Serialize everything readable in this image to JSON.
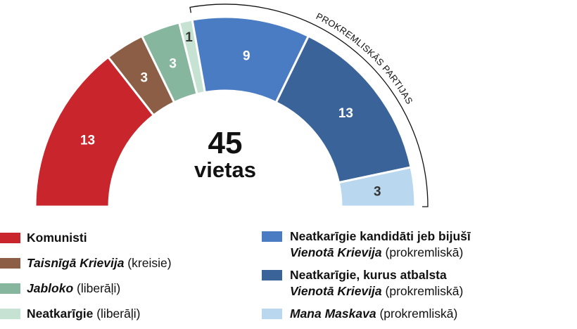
{
  "chart_data": {
    "type": "pie",
    "style": "semicircle-donut",
    "total": {
      "value": "45",
      "label": "vietas"
    },
    "series": [
      {
        "seats": 13,
        "label": "13",
        "color": "#c8262c",
        "label_color": "#ffffff"
      },
      {
        "seats": 3,
        "label": "3",
        "color": "#8b5e45",
        "label_color": "#ffffff"
      },
      {
        "seats": 3,
        "label": "3",
        "color": "#86b69e",
        "label_color": "#ffffff"
      },
      {
        "seats": 1,
        "label": "1",
        "color": "#c5e2d2",
        "label_color": "#333333"
      },
      {
        "seats": 9,
        "label": "9",
        "color": "#4a7cc4",
        "label_color": "#ffffff"
      },
      {
        "seats": 13,
        "label": "13",
        "color": "#3a6499",
        "label_color": "#ffffff"
      },
      {
        "seats": 3,
        "label": "3",
        "color": "#b9d7ee",
        "label_color": "#333333"
      }
    ],
    "bracket": {
      "label": "Prokremliskās partijas",
      "label_display": "PROKREMLISKĀS PARTIJAS",
      "from_series": 4,
      "to_series": 6
    }
  },
  "legend": {
    "left": [
      {
        "color": "#c8262c",
        "lines": [
          [
            {
              "text": "Komunisti",
              "style": "bold"
            }
          ]
        ]
      },
      {
        "color": "#8b5e45",
        "lines": [
          [
            {
              "text": "Taisnīgā Krievija",
              "style": "bolditalic"
            },
            {
              "text": " (kreisie)",
              "style": "normal"
            }
          ]
        ]
      },
      {
        "color": "#86b69e",
        "lines": [
          [
            {
              "text": "Jabloko",
              "style": "bolditalic"
            },
            {
              "text": " (liberāļi)",
              "style": "normal"
            }
          ]
        ]
      },
      {
        "color": "#c5e2d2",
        "lines": [
          [
            {
              "text": "Neatkarīgie",
              "style": "bold"
            },
            {
              "text": " (liberāļi)",
              "style": "normal"
            }
          ]
        ]
      }
    ],
    "right": [
      {
        "color": "#4a7cc4",
        "lines": [
          [
            {
              "text": "Neatkarīgie kandidāti jeb bijušī",
              "style": "bold"
            }
          ],
          [
            {
              "text": "Vienotā Krievija",
              "style": "bolditalic"
            },
            {
              "text": " (prokremliskā)",
              "style": "normal"
            }
          ]
        ]
      },
      {
        "color": "#3a6499",
        "lines": [
          [
            {
              "text": "Neatkarīgie, kurus atbalsta",
              "style": "bold"
            }
          ],
          [
            {
              "text": "Vienotā Krievija",
              "style": "bolditalic"
            },
            {
              "text": " (prokremliskā)",
              "style": "normal"
            }
          ]
        ]
      },
      {
        "color": "#b9d7ee",
        "lines": [
          [
            {
              "text": "Mana Maskava",
              "style": "bolditalic"
            },
            {
              "text": " (prokremliskā)",
              "style": "normal"
            }
          ]
        ]
      }
    ]
  }
}
